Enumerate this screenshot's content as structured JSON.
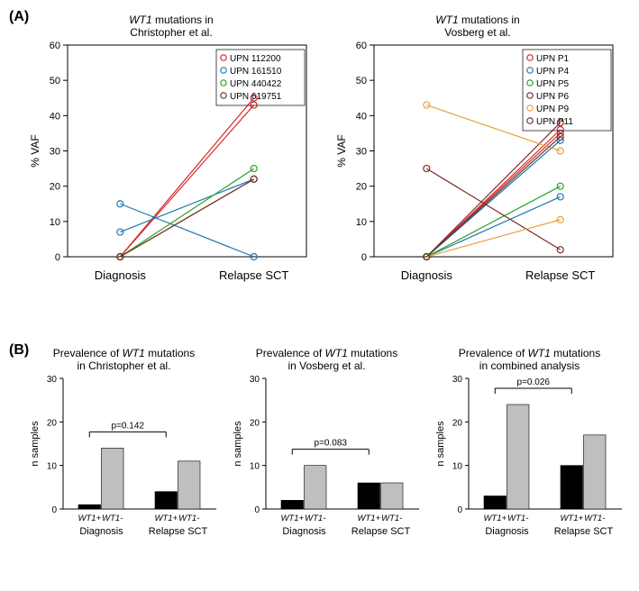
{
  "panelA": {
    "label": "(A)",
    "left": {
      "title_line1": "WT1 mutations in",
      "title_line2": "Christopher et al.",
      "ylabel": "% VAF",
      "xlabels": [
        "Diagnosis",
        "Relapse SCT"
      ],
      "ylim": [
        0,
        60
      ],
      "yticks": [
        0,
        10,
        20,
        30,
        40,
        50,
        60
      ],
      "series": [
        {
          "name": "UPN 112200",
          "color": "#d62728",
          "points": [
            [
              0,
              0
            ],
            [
              1,
              45
            ]
          ]
        },
        {
          "name": "UPN 112200",
          "color": "#d62728",
          "points": [
            [
              0,
              0
            ],
            [
              1,
              43
            ]
          ]
        },
        {
          "name": "UPN 161510",
          "color": "#1f77b4",
          "points": [
            [
              0,
              15
            ],
            [
              1,
              0
            ]
          ]
        },
        {
          "name": "UPN 161510",
          "color": "#1f77b4",
          "points": [
            [
              0,
              7
            ],
            [
              1,
              22
            ]
          ]
        },
        {
          "name": "UPN 440422",
          "color": "#2ca02c",
          "points": [
            [
              0,
              0
            ],
            [
              1,
              22
            ]
          ]
        },
        {
          "name": "UPN 440422",
          "color": "#2ca02c",
          "points": [
            [
              0,
              0
            ],
            [
              1,
              25
            ]
          ]
        },
        {
          "name": "UPN 619751",
          "color": "#7b2d26",
          "points": [
            [
              0,
              0
            ],
            [
              1,
              22
            ]
          ]
        }
      ],
      "legend": [
        {
          "label": "UPN 112200",
          "color": "#d62728"
        },
        {
          "label": "UPN 161510",
          "color": "#1f77b4"
        },
        {
          "label": "UPN 440422",
          "color": "#2ca02c"
        },
        {
          "label": "UPN 619751",
          "color": "#7b2d26"
        }
      ]
    },
    "right": {
      "title_line1": "WT1 mutations in",
      "title_line2": "Vosberg et al.",
      "ylabel": "% VAF",
      "xlabels": [
        "Diagnosis",
        "Relapse SCT"
      ],
      "ylim": [
        0,
        60
      ],
      "yticks": [
        0,
        10,
        20,
        30,
        40,
        50,
        60
      ],
      "series": [
        {
          "name": "UPN P1",
          "color": "#d62728",
          "points": [
            [
              0,
              0
            ],
            [
              1,
              36
            ]
          ]
        },
        {
          "name": "UPN P1",
          "color": "#d62728",
          "points": [
            [
              0,
              0
            ],
            [
              1,
              35
            ]
          ]
        },
        {
          "name": "UPN P4",
          "color": "#1f77b4",
          "points": [
            [
              0,
              0
            ],
            [
              1,
              17
            ]
          ]
        },
        {
          "name": "UPN P4",
          "color": "#1f77b4",
          "points": [
            [
              0,
              0
            ],
            [
              1,
              33
            ]
          ]
        },
        {
          "name": "UPN P5",
          "color": "#2ca02c",
          "points": [
            [
              0,
              0
            ],
            [
              1,
              20
            ]
          ]
        },
        {
          "name": "UPN P6",
          "color": "#7b2d26",
          "points": [
            [
              0,
              0
            ],
            [
              1,
              38
            ]
          ]
        },
        {
          "name": "UPN P6",
          "color": "#7b2d26",
          "points": [
            [
              0,
              25
            ],
            [
              1,
              2
            ]
          ]
        },
        {
          "name": "UPN P9",
          "color": "#e8a33d",
          "points": [
            [
              0,
              0
            ],
            [
              1,
              10.5
            ]
          ]
        },
        {
          "name": "UPN P9",
          "color": "#e8a33d",
          "points": [
            [
              0,
              43
            ],
            [
              1,
              30
            ]
          ]
        },
        {
          "name": "UPN P11",
          "color": "#5c3a2e",
          "points": [
            [
              0,
              0
            ],
            [
              1,
              34
            ]
          ]
        }
      ],
      "legend": [
        {
          "label": "UPN P1",
          "color": "#d62728"
        },
        {
          "label": "UPN P4",
          "color": "#1f77b4"
        },
        {
          "label": "UPN P5",
          "color": "#2ca02c"
        },
        {
          "label": "UPN P6",
          "color": "#7b2d26"
        },
        {
          "label": "UPN P9",
          "color": "#e8a33d"
        },
        {
          "label": "UPN P11",
          "color": "#5c3a2e"
        }
      ]
    }
  },
  "panelB": {
    "label": "(B)",
    "charts": [
      {
        "title_line1": "Prevalence of WT1 mutations",
        "title_line2": "in Christopher et al.",
        "ylabel": "n samples",
        "ylim": [
          0,
          30
        ],
        "yticks": [
          0,
          10,
          20,
          30
        ],
        "pvalue": "p=0.142",
        "groups": [
          {
            "label": "Diagnosis",
            "bars": [
              {
                "tag": "WT1+",
                "value": 1,
                "color": "#000000"
              },
              {
                "tag": "WT1-",
                "value": 14,
                "color": "#bfbfbf"
              }
            ]
          },
          {
            "label": "Relapse SCT",
            "bars": [
              {
                "tag": "WT1+",
                "value": 4,
                "color": "#000000"
              },
              {
                "tag": "WT1-",
                "value": 11,
                "color": "#bfbfbf"
              }
            ]
          }
        ]
      },
      {
        "title_line1": "Prevalence of WT1 mutations",
        "title_line2": "in Vosberg et al.",
        "ylabel": "n samples",
        "ylim": [
          0,
          30
        ],
        "yticks": [
          0,
          10,
          20,
          30
        ],
        "pvalue": "p=0.083",
        "groups": [
          {
            "label": "Diagnosis",
            "bars": [
              {
                "tag": "WT1+",
                "value": 2,
                "color": "#000000"
              },
              {
                "tag": "WT1-",
                "value": 10,
                "color": "#bfbfbf"
              }
            ]
          },
          {
            "label": "Relapse SCT",
            "bars": [
              {
                "tag": "WT1+",
                "value": 6,
                "color": "#000000"
              },
              {
                "tag": "WT1-",
                "value": 6,
                "color": "#bfbfbf"
              }
            ]
          }
        ]
      },
      {
        "title_line1": "Prevalence of WT1 mutations",
        "title_line2": "in  combined analysis",
        "ylabel": "n samples",
        "ylim": [
          0,
          30
        ],
        "yticks": [
          0,
          10,
          20,
          30
        ],
        "pvalue": "p=0.026",
        "groups": [
          {
            "label": "Diagnosis",
            "bars": [
              {
                "tag": "WT1+",
                "value": 3,
                "color": "#000000"
              },
              {
                "tag": "WT1-",
                "value": 24,
                "color": "#bfbfbf"
              }
            ]
          },
          {
            "label": "Relapse SCT",
            "bars": [
              {
                "tag": "WT1+",
                "value": 10,
                "color": "#000000"
              },
              {
                "tag": "WT1-",
                "value": 17,
                "color": "#bfbfbf"
              }
            ]
          }
        ]
      }
    ]
  },
  "style": {
    "axis_color": "#000000",
    "marker_radius": 3.5,
    "line_width": 1.2,
    "bar_stroke": "#000000",
    "font": "Arial"
  }
}
